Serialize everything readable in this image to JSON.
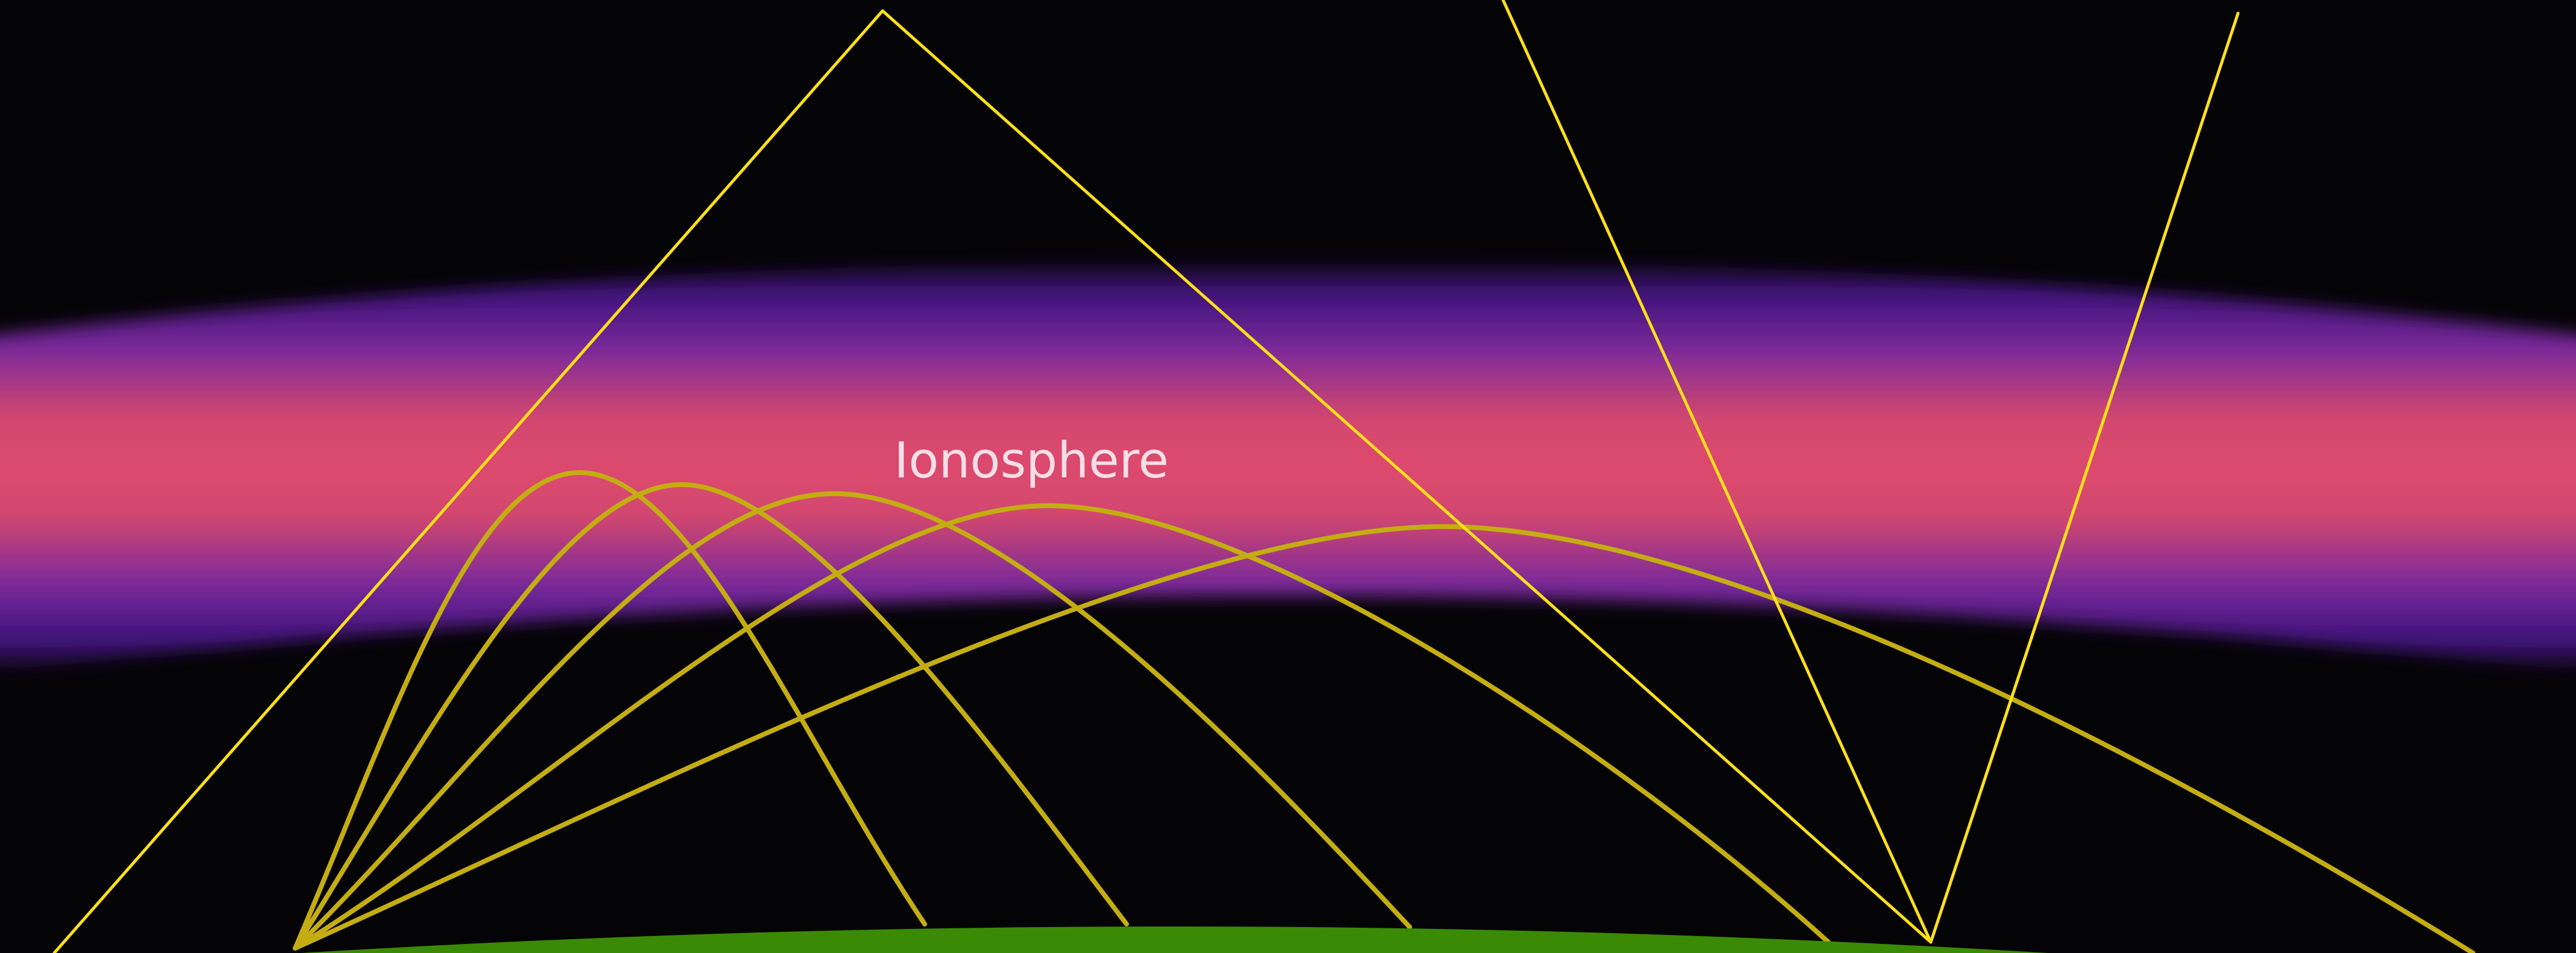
{
  "diagram": {
    "layer_label": "Ionosphere",
    "colors": {
      "background": "#040406",
      "ionosphere_core": "#de4a6e",
      "ionosphere_edge": "#5b1ca0",
      "ground": "#3a8a06",
      "sky_ray": "#ffe01a",
      "refracted_ray": "#c4ad12"
    }
  }
}
